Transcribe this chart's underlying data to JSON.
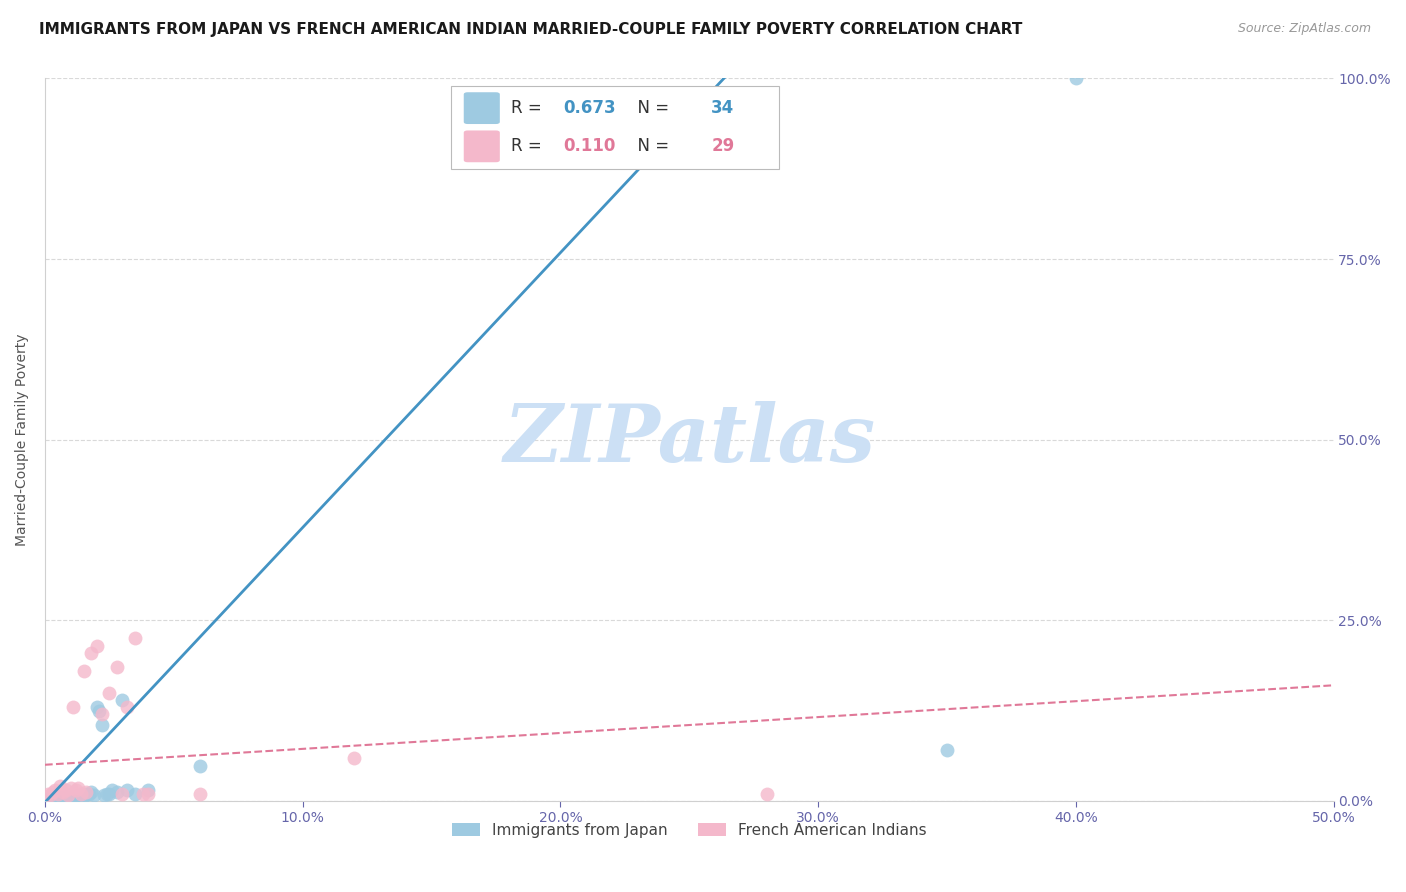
{
  "title": "IMMIGRANTS FROM JAPAN VS FRENCH AMERICAN INDIAN MARRIED-COUPLE FAMILY POVERTY CORRELATION CHART",
  "source": "Source: ZipAtlas.com",
  "ylabel": "Married-Couple Family Poverty",
  "legend_label_blue": "Immigrants from Japan",
  "legend_label_pink": "French American Indians",
  "R_blue": 0.673,
  "N_blue": 34,
  "R_pink": 0.11,
  "N_pink": 29,
  "xlim": [
    0.0,
    0.5
  ],
  "ylim": [
    0.0,
    1.0
  ],
  "xticks": [
    0.0,
    0.1,
    0.2,
    0.3,
    0.4,
    0.5
  ],
  "xtick_labels": [
    "0.0%",
    "10.0%",
    "20.0%",
    "30.0%",
    "40.0%",
    "50.0%"
  ],
  "yticks": [
    0.0,
    0.25,
    0.5,
    0.75,
    1.0
  ],
  "ytick_labels": [
    "0.0%",
    "25.0%",
    "50.0%",
    "75.0%",
    "100.0%"
  ],
  "blue_scatter_x": [
    0.001,
    0.002,
    0.003,
    0.004,
    0.005,
    0.006,
    0.007,
    0.008,
    0.009,
    0.01,
    0.011,
    0.012,
    0.013,
    0.014,
    0.015,
    0.016,
    0.017,
    0.018,
    0.019,
    0.02,
    0.021,
    0.022,
    0.023,
    0.024,
    0.025,
    0.026,
    0.028,
    0.03,
    0.032,
    0.035,
    0.04,
    0.06,
    0.4,
    0.35
  ],
  "blue_scatter_y": [
    0.002,
    0.003,
    0.004,
    0.003,
    0.005,
    0.004,
    0.003,
    0.005,
    0.004,
    0.006,
    0.005,
    0.007,
    0.006,
    0.008,
    0.007,
    0.009,
    0.01,
    0.012,
    0.008,
    0.13,
    0.125,
    0.105,
    0.008,
    0.01,
    0.009,
    0.015,
    0.012,
    0.14,
    0.015,
    0.01,
    0.015,
    0.048,
    1.0,
    0.07
  ],
  "pink_scatter_x": [
    0.001,
    0.002,
    0.003,
    0.004,
    0.005,
    0.006,
    0.007,
    0.008,
    0.009,
    0.01,
    0.011,
    0.012,
    0.013,
    0.014,
    0.015,
    0.016,
    0.018,
    0.02,
    0.022,
    0.025,
    0.028,
    0.03,
    0.032,
    0.035,
    0.038,
    0.04,
    0.06,
    0.28,
    0.12
  ],
  "pink_scatter_y": [
    0.01,
    0.008,
    0.012,
    0.015,
    0.01,
    0.02,
    0.012,
    0.015,
    0.008,
    0.018,
    0.13,
    0.015,
    0.018,
    0.01,
    0.18,
    0.012,
    0.205,
    0.215,
    0.12,
    0.15,
    0.185,
    0.01,
    0.13,
    0.225,
    0.01,
    0.01,
    0.01,
    0.01,
    0.06
  ],
  "blue_line_x": [
    -0.01,
    0.5
  ],
  "blue_line_y": [
    -0.04,
    1.9
  ],
  "pink_line_x": [
    0.0,
    0.5
  ],
  "pink_line_y": [
    0.05,
    0.16
  ],
  "watermark": "ZIPatlas",
  "background_color": "#ffffff",
  "blue_color": "#9ecae1",
  "pink_color": "#f4b8cb",
  "blue_line_color": "#4393c3",
  "pink_line_color": "#e07898",
  "grid_color": "#d0d0d0",
  "tick_color": "#6666aa",
  "title_fontsize": 11,
  "watermark_color": "#cce0f5"
}
